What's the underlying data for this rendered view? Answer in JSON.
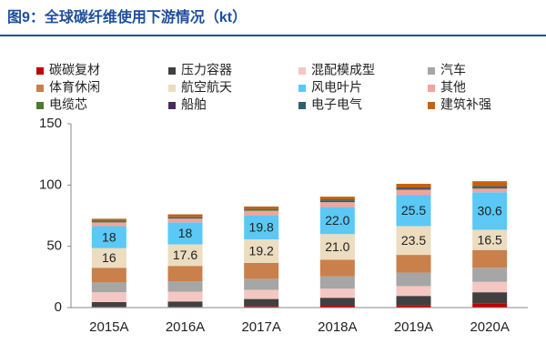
{
  "chart_data": {
    "type": "stacked_bar",
    "title": "图9：全球碳纤维使用下游情况（kt）",
    "categories": [
      "2015A",
      "2016A",
      "2017A",
      "2018A",
      "2019A",
      "2020A"
    ],
    "ylim": [
      0,
      150
    ],
    "yticks": [
      0,
      50,
      100,
      150
    ],
    "series": [
      {
        "name": "碳碳复材",
        "color": "#c00000",
        "values": [
          0.5,
          0.5,
          1,
          1.5,
          2,
          3.5
        ]
      },
      {
        "name": "压力容器",
        "color": "#404040",
        "values": [
          4,
          4.5,
          6,
          6.5,
          7.5,
          9
        ]
      },
      {
        "name": "混配模成型",
        "color": "#f4c7c3",
        "values": [
          8,
          8,
          7.5,
          7.5,
          8,
          8.5
        ]
      },
      {
        "name": "汽车",
        "color": "#a6a6a6",
        "values": [
          8,
          8.5,
          9,
          10,
          11,
          11.5
        ]
      },
      {
        "name": "体育休闲",
        "color": "#c9804a",
        "values": [
          12,
          12.5,
          13,
          13.5,
          14.5,
          14.5
        ]
      },
      {
        "name": "航空航天",
        "color": "#ecdcc0",
        "values": [
          16,
          17.6,
          19.2,
          21.0,
          23.5,
          16.5
        ],
        "value_labels": [
          "16",
          "17.6",
          "19.2",
          "21.0",
          "23.5",
          "16.5"
        ]
      },
      {
        "name": "风电叶片",
        "color": "#5bc8f5",
        "values": [
          18,
          18,
          19.8,
          22.0,
          25.5,
          30.6
        ],
        "value_labels": [
          "18",
          "18",
          "19.8",
          "22.0",
          "25.5",
          "30.6"
        ]
      },
      {
        "name": "其他",
        "color": "#f4a39a",
        "values": [
          3,
          3,
          3.5,
          4,
          4,
          3
        ]
      },
      {
        "name": "电缆芯",
        "color": "#4e7a2e",
        "values": [
          0.5,
          0.5,
          0.5,
          0.5,
          0.5,
          0.5
        ]
      },
      {
        "name": "船舶",
        "color": "#4a2c5c",
        "values": [
          0.5,
          0.5,
          0.5,
          0.5,
          0.5,
          0.5
        ]
      },
      {
        "name": "电子电气",
        "color": "#2f5f70",
        "values": [
          0.5,
          0.5,
          0.5,
          1,
          1,
          1
        ]
      },
      {
        "name": "建筑补强",
        "color": "#c5620f",
        "values": [
          1.5,
          2,
          2,
          2.5,
          3,
          4
        ]
      }
    ]
  }
}
